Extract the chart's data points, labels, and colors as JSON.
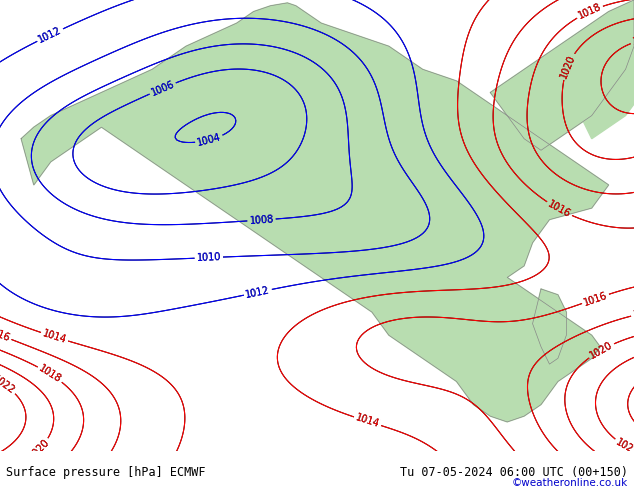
{
  "title_left": "Surface pressure [hPa] ECMWF",
  "title_right": "Tu 07-05-2024 06:00 UTC (00+150)",
  "copyright": "©weatheronline.co.uk",
  "bg_color": "#c8dff0",
  "land_color": "#b8ddb0",
  "figsize": [
    6.34,
    4.9
  ],
  "dpi": 100,
  "bottom_bar_color": "#e0e0e0",
  "label_fontsize": 7,
  "title_fontsize": 8.5,
  "copyright_color": "#0000cc"
}
